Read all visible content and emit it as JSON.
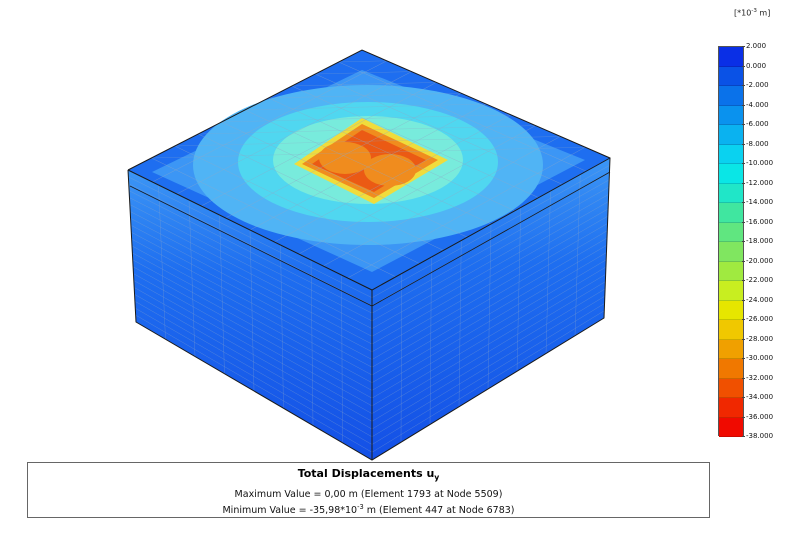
{
  "result": {
    "title_main": "Total Displacements u",
    "title_sub": "y",
    "max_prefix": "Maximum Value = 0,00 m (Element 1793 at Node 5509)",
    "min_prefix": "Minimum Value = -35,98*10",
    "min_exp": "-3",
    "min_suffix": " m (Element 447 at Node 6783)"
  },
  "legend": {
    "unit_prefix": "[*10",
    "unit_exp": "-3",
    "unit_suffix": " m]",
    "ticks": [
      "2.000",
      "0.000",
      "-2.000",
      "-4.000",
      "-6.000",
      "-8.000",
      "-10.000",
      "-12.000",
      "-14.000",
      "-16.000",
      "-18.000",
      "-20.000",
      "-22.000",
      "-24.000",
      "-26.000",
      "-28.000",
      "-30.000",
      "-32.000",
      "-34.000",
      "-36.000",
      "-38.000"
    ],
    "band_colors": [
      "#0a2fe6",
      "#0a52e6",
      "#0a72ea",
      "#0a92ee",
      "#0ab2f0",
      "#0ad2f0",
      "#0ae6e6",
      "#20e6c8",
      "#40e6a0",
      "#60e680",
      "#80e660",
      "#a0ea40",
      "#c8ee20",
      "#e6e600",
      "#f0c800",
      "#f0a000",
      "#f07800",
      "#f05000",
      "#f02800",
      "#f00a00"
    ]
  },
  "model": {
    "colors": {
      "dark_blue": "#1450e6",
      "blue": "#1e6ef0",
      "mid_blue": "#3c96f5",
      "light_blue": "#50b4f5",
      "cyan": "#50d7f0",
      "aqua": "#78ebdc",
      "yellow": "#f0dc3c",
      "orange": "#f08c1e",
      "red_orange": "#eb5a14",
      "mesh": "#8fa8c8",
      "edge": "#1a1a1a"
    }
  }
}
